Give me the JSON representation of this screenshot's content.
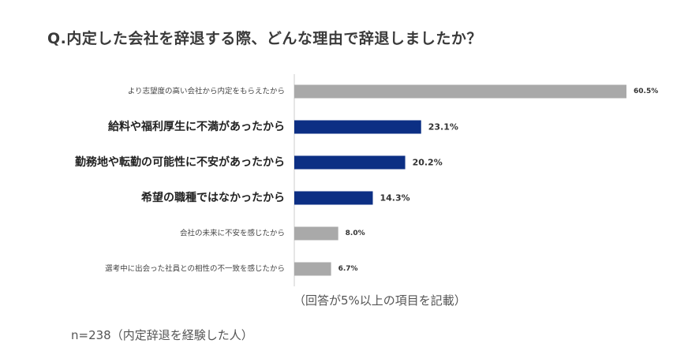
{
  "title": "Q.内定した会社を辞退する際、どんな理由で辞退しましたか？",
  "note": "（回答が5%以上の項目を記載）",
  "sample": "n=238（内定辞退を経験した人）",
  "colors": {
    "highlight": "#0c2f84",
    "normal": "#a9a9a9",
    "axis": "#cccccc",
    "text": "#333333"
  },
  "chart_data": {
    "type": "bar",
    "orientation": "horizontal",
    "xlim": [
      0,
      100
    ],
    "grid": false,
    "legend": "none",
    "categories": [
      "より志望度の高い会社から内定をもらえたから",
      "給料や福利厚生に不満があったから",
      "勤務地や転勤の可能性に不安があったから",
      "希望の職種ではなかったから",
      "会社の未来に不安を感じたから",
      "選考中に出会った社員との相性の不一致を感じたから"
    ],
    "values": [
      60.5,
      23.1,
      20.2,
      14.3,
      8.0,
      6.7
    ],
    "value_labels": [
      "60.5%",
      "23.1%",
      "20.2%",
      "14.3%",
      "8.0%",
      "6.7%"
    ],
    "highlighted": [
      false,
      true,
      true,
      true,
      false,
      false
    ]
  }
}
